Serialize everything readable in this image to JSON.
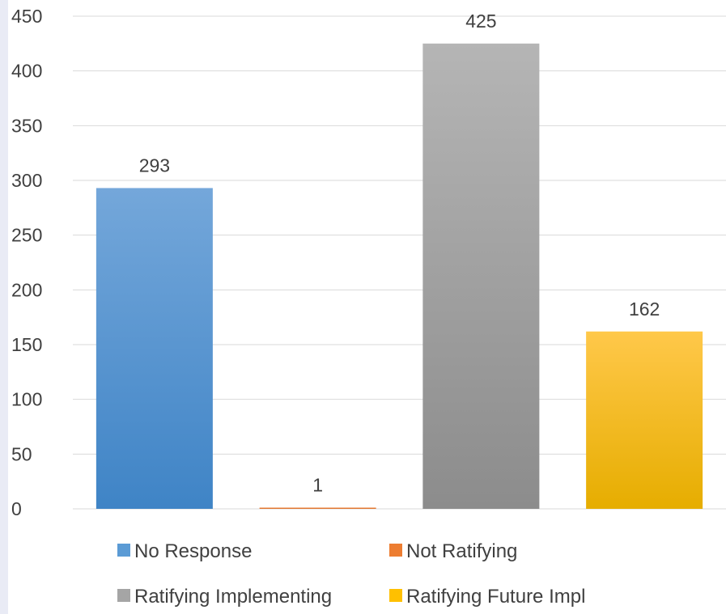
{
  "chart_data": {
    "type": "bar",
    "categories": [
      "No Response",
      "Not Ratifying",
      "Ratifying Implementing",
      "Ratifying Future Impl"
    ],
    "values": [
      293,
      1,
      425,
      162
    ],
    "data_labels": [
      "293",
      "1",
      "425",
      "162"
    ],
    "y_ticks": [
      0,
      50,
      100,
      150,
      200,
      250,
      300,
      350,
      400,
      450
    ],
    "ylim": [
      0,
      450
    ],
    "title": "",
    "xlabel": "",
    "ylabel": "",
    "grid": true,
    "legend_position": "bottom",
    "colors": [
      "#5b9bd5",
      "#ed7d31",
      "#a5a5a5",
      "#ffc000"
    ],
    "gradients": [
      [
        "#74a7da",
        "#3f84c6"
      ],
      [
        "#f08a44",
        "#d86a22"
      ],
      [
        "#b5b5b5",
        "#8c8c8c"
      ],
      [
        "#ffc84a",
        "#e6ad00"
      ]
    ]
  }
}
